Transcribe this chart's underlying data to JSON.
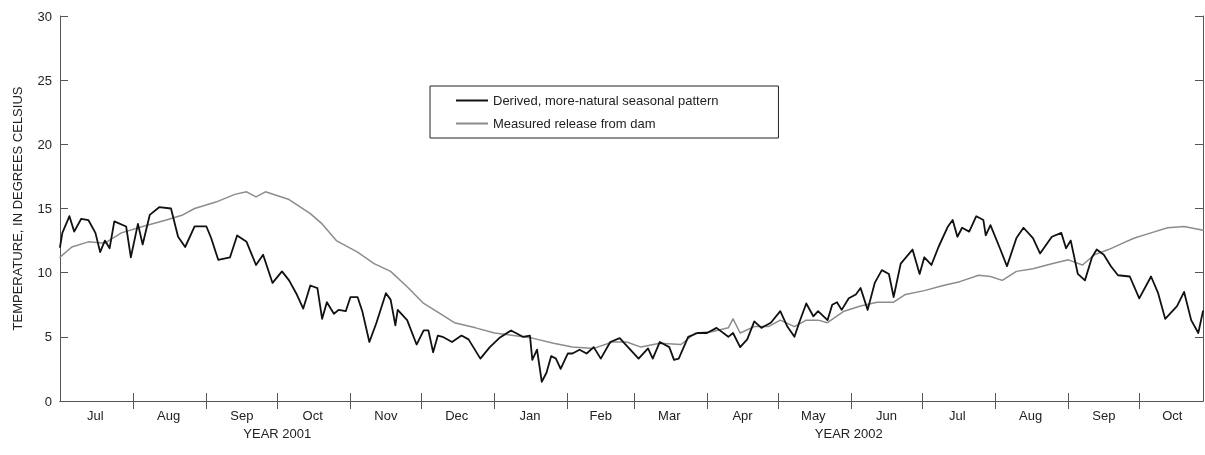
{
  "chart_data": {
    "type": "line",
    "ylabel": "TEMPERATURE, IN DEGREES CELSIUS",
    "annotations": [
      "YEAR 2001",
      "YEAR 2002"
    ],
    "xlim": [
      "2001-07-01",
      "2002-10-28"
    ],
    "xticks": [
      {
        "value": "2001-07-16",
        "label": "Jul"
      },
      {
        "value": "2001-08-01",
        "label": null
      },
      {
        "value": "2001-08-16",
        "label": "Aug"
      },
      {
        "value": "2001-09-01",
        "label": null
      },
      {
        "value": "2001-09-16",
        "label": "Sep"
      },
      {
        "value": "2001-10-01",
        "label": null
      },
      {
        "value": "2001-10-16",
        "label": "Oct"
      },
      {
        "value": "2001-11-01",
        "label": null
      },
      {
        "value": "2001-11-16",
        "label": "Nov"
      },
      {
        "value": "2001-12-01",
        "label": null
      },
      {
        "value": "2001-12-16",
        "label": "Dec"
      },
      {
        "value": "2002-01-01",
        "label": null
      },
      {
        "value": "2002-01-16",
        "label": "Jan"
      },
      {
        "value": "2002-02-01",
        "label": null
      },
      {
        "value": "2002-02-15",
        "label": "Feb"
      },
      {
        "value": "2002-03-01",
        "label": null
      },
      {
        "value": "2002-03-16",
        "label": "Mar"
      },
      {
        "value": "2002-04-01",
        "label": null
      },
      {
        "value": "2002-04-16",
        "label": "Apr"
      },
      {
        "value": "2002-05-01",
        "label": null
      },
      {
        "value": "2002-05-16",
        "label": "May"
      },
      {
        "value": "2002-06-01",
        "label": null
      },
      {
        "value": "2002-06-16",
        "label": "Jun"
      },
      {
        "value": "2002-07-01",
        "label": null
      },
      {
        "value": "2002-07-16",
        "label": "Jul"
      },
      {
        "value": "2002-08-01",
        "label": null
      },
      {
        "value": "2002-08-16",
        "label": "Aug"
      },
      {
        "value": "2002-09-01",
        "label": null
      },
      {
        "value": "2002-09-16",
        "label": "Sep"
      },
      {
        "value": "2002-10-01",
        "label": null
      },
      {
        "value": "2002-10-15",
        "label": "Oct"
      }
    ],
    "ylim": [
      0,
      30
    ],
    "yticks": [
      0,
      5,
      10,
      15,
      20,
      25,
      30
    ],
    "grid": false,
    "legend": "top",
    "marker": "none",
    "line_style": "solid",
    "series": [
      {
        "name": "Derived, more-natural seasonal pattern",
        "color": "#111111",
        "x": [
          "2001-07-01",
          "2001-07-02",
          "2001-07-05",
          "2001-07-07",
          "2001-07-10",
          "2001-07-13",
          "2001-07-16",
          "2001-07-18",
          "2001-07-20",
          "2001-07-22",
          "2001-07-24",
          "2001-07-29",
          "2001-07-31",
          "2001-08-03",
          "2001-08-05",
          "2001-08-08",
          "2001-08-12",
          "2001-08-17",
          "2001-08-20",
          "2001-08-23",
          "2001-08-27",
          "2001-09-01",
          "2001-09-03",
          "2001-09-06",
          "2001-09-11",
          "2001-09-14",
          "2001-09-18",
          "2001-09-22",
          "2001-09-25",
          "2001-09-29",
          "2001-10-03",
          "2001-10-06",
          "2001-10-09",
          "2001-10-12",
          "2001-10-15",
          "2001-10-18",
          "2001-10-20",
          "2001-10-22",
          "2001-10-25",
          "2001-10-27",
          "2001-10-30",
          "2001-11-01",
          "2001-11-04",
          "2001-11-06",
          "2001-11-09",
          "2001-11-12",
          "2001-11-16",
          "2001-11-18",
          "2001-11-20",
          "2001-11-21",
          "2001-11-25",
          "2001-11-29",
          "2001-12-02",
          "2001-12-04",
          "2001-12-06",
          "2001-12-08",
          "2001-12-10",
          "2001-12-14",
          "2001-12-18",
          "2001-12-21",
          "2001-12-26",
          "2001-12-30",
          "2002-01-03",
          "2002-01-08",
          "2002-01-13",
          "2002-01-16",
          "2002-01-17",
          "2002-01-19",
          "2002-01-21",
          "2002-01-23",
          "2002-01-25",
          "2002-01-27",
          "2002-01-29",
          "2002-02-01",
          "2002-02-03",
          "2002-02-06",
          "2002-02-09",
          "2002-02-12",
          "2002-02-15",
          "2002-02-19",
          "2002-02-23",
          "2002-02-27",
          "2002-03-03",
          "2002-03-07",
          "2002-03-09",
          "2002-03-12",
          "2002-03-16",
          "2002-03-18",
          "2002-03-20",
          "2002-03-24",
          "2002-03-28",
          "2002-04-01",
          "2002-04-05",
          "2002-04-10",
          "2002-04-12",
          "2002-04-15",
          "2002-04-18",
          "2002-04-21",
          "2002-04-24",
          "2002-04-28",
          "2002-05-02",
          "2002-05-05",
          "2002-05-08",
          "2002-05-10",
          "2002-05-13",
          "2002-05-16",
          "2002-05-18",
          "2002-05-22",
          "2002-05-24",
          "2002-05-26",
          "2002-05-28",
          "2002-05-31",
          "2002-06-03",
          "2002-06-05",
          "2002-06-08",
          "2002-06-11",
          "2002-06-14",
          "2002-06-17",
          "2002-06-19",
          "2002-06-22",
          "2002-06-27",
          "2002-06-30",
          "2002-07-02",
          "2002-07-05",
          "2002-07-08",
          "2002-07-12",
          "2002-07-14",
          "2002-07-16",
          "2002-07-18",
          "2002-07-21",
          "2002-07-24",
          "2002-07-27",
          "2002-07-28",
          "2002-07-30",
          "2002-08-03",
          "2002-08-06",
          "2002-08-10",
          "2002-08-13",
          "2002-08-17",
          "2002-08-20",
          "2002-08-25",
          "2002-08-29",
          "2002-08-31",
          "2002-09-02",
          "2002-09-05",
          "2002-09-08",
          "2002-09-11",
          "2002-09-13",
          "2002-09-16",
          "2002-09-19",
          "2002-09-22",
          "2002-09-27",
          "2002-10-01",
          "2002-10-06",
          "2002-10-09",
          "2002-10-12",
          "2002-10-17",
          "2002-10-20",
          "2002-10-23",
          "2002-10-26",
          "2002-10-28"
        ],
        "values": [
          12.0,
          13.1,
          14.4,
          13.2,
          14.2,
          14.1,
          13.1,
          11.6,
          12.5,
          11.9,
          14.0,
          13.6,
          11.2,
          13.8,
          12.2,
          14.5,
          15.1,
          15.0,
          12.8,
          12.0,
          13.6,
          13.6,
          12.7,
          11.0,
          11.2,
          12.9,
          12.4,
          10.6,
          11.4,
          9.2,
          10.1,
          9.4,
          8.4,
          7.2,
          9.0,
          8.8,
          6.4,
          7.7,
          6.8,
          7.1,
          7.0,
          8.1,
          8.1,
          7.0,
          4.6,
          6.1,
          8.4,
          7.9,
          5.9,
          7.1,
          6.3,
          4.4,
          5.5,
          5.5,
          3.8,
          5.1,
          5.0,
          4.6,
          5.1,
          4.8,
          3.3,
          4.2,
          4.9,
          5.5,
          5.0,
          5.1,
          3.2,
          4.0,
          1.5,
          2.2,
          3.5,
          3.3,
          2.5,
          3.7,
          3.7,
          4.0,
          3.7,
          4.2,
          3.3,
          4.6,
          4.9,
          4.1,
          3.3,
          4.1,
          3.3,
          4.6,
          4.2,
          3.2,
          3.3,
          5.0,
          5.3,
          5.3,
          5.7,
          5.0,
          5.3,
          4.2,
          4.8,
          6.2,
          5.7,
          6.1,
          7.0,
          5.8,
          5.0,
          6.1,
          7.6,
          6.6,
          7.0,
          6.3,
          7.5,
          7.7,
          7.1,
          8.0,
          8.3,
          8.8,
          7.1,
          9.2,
          10.2,
          9.9,
          8.1,
          10.7,
          11.8,
          9.9,
          11.2,
          10.6,
          12.0,
          13.6,
          14.1,
          12.8,
          13.5,
          13.2,
          14.4,
          14.1,
          12.9,
          13.7,
          11.9,
          10.5,
          12.7,
          13.5,
          12.7,
          11.5,
          12.8,
          13.1,
          11.9,
          12.5,
          9.9,
          9.4,
          11.2,
          11.8,
          11.4,
          10.5,
          9.8,
          9.7,
          8.0,
          9.7,
          8.4,
          6.4,
          7.4,
          8.5,
          6.3,
          5.3,
          7.0
        ]
      },
      {
        "name": "Measured release from dam",
        "color": "#8c8c8c",
        "x": [
          "2001-07-01",
          "2001-07-06",
          "2001-07-13",
          "2001-07-20",
          "2001-07-27",
          "2001-08-05",
          "2001-08-15",
          "2001-08-22",
          "2001-08-27",
          "2001-09-05",
          "2001-09-13",
          "2001-09-18",
          "2001-09-22",
          "2001-09-26",
          "2001-10-06",
          "2001-10-15",
          "2001-10-20",
          "2001-10-26",
          "2001-11-04",
          "2001-11-11",
          "2001-11-18",
          "2001-11-25",
          "2001-12-02",
          "2001-12-09",
          "2001-12-15",
          "2001-12-24",
          "2002-01-01",
          "2002-01-09",
          "2002-01-17",
          "2002-01-26",
          "2002-02-03",
          "2002-02-12",
          "2002-02-20",
          "2002-02-26",
          "2002-03-04",
          "2002-03-12",
          "2002-03-21",
          "2002-03-27",
          "2002-04-03",
          "2002-04-10",
          "2002-04-12",
          "2002-04-15",
          "2002-04-21",
          "2002-04-27",
          "2002-05-02",
          "2002-05-08",
          "2002-05-13",
          "2002-05-18",
          "2002-05-22",
          "2002-05-29",
          "2002-06-05",
          "2002-06-12",
          "2002-06-19",
          "2002-06-24",
          "2002-07-02",
          "2002-07-10",
          "2002-07-17",
          "2002-07-25",
          "2002-07-30",
          "2002-08-04",
          "2002-08-10",
          "2002-08-17",
          "2002-08-25",
          "2002-09-01",
          "2002-09-07",
          "2002-09-12",
          "2002-09-18",
          "2002-09-24",
          "2002-09-29",
          "2002-10-06",
          "2002-10-13",
          "2002-10-20",
          "2002-10-28"
        ],
        "values": [
          11.2,
          12.0,
          12.4,
          12.3,
          13.1,
          13.6,
          14.1,
          14.5,
          15.0,
          15.5,
          16.1,
          16.3,
          15.9,
          16.3,
          15.7,
          14.6,
          13.8,
          12.5,
          11.6,
          10.7,
          10.1,
          8.9,
          7.6,
          6.8,
          6.1,
          5.7,
          5.3,
          5.1,
          4.9,
          4.5,
          4.2,
          4.1,
          4.6,
          4.6,
          4.2,
          4.5,
          4.4,
          5.3,
          5.4,
          5.7,
          6.4,
          5.3,
          5.8,
          5.8,
          6.3,
          5.8,
          6.3,
          6.3,
          6.1,
          7.0,
          7.4,
          7.7,
          7.7,
          8.3,
          8.6,
          9.0,
          9.3,
          9.8,
          9.7,
          9.4,
          10.1,
          10.3,
          10.7,
          11.0,
          10.6,
          11.4,
          11.8,
          12.3,
          12.7,
          13.1,
          13.5,
          13.6,
          13.3
        ]
      }
    ]
  }
}
